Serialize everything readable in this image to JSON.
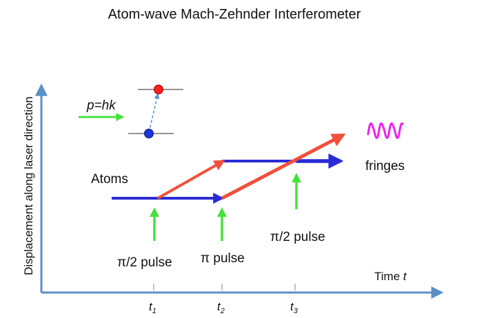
{
  "title": "Atom-wave Mach-Zehnder Interferometer",
  "axes": {
    "y_label": "Displacement along laser direction",
    "x_label_text": "Time ",
    "x_label_var": "t"
  },
  "ticks": [
    {
      "main": "t",
      "sub": "1"
    },
    {
      "main": "t",
      "sub": "2"
    },
    {
      "main": "t",
      "sub": "3"
    }
  ],
  "labels": {
    "atoms": "Atoms",
    "fringes": "fringes",
    "momentum": "p=hk",
    "pulse1": "π/2 pulse",
    "pulse2": "π pulse",
    "pulse3": "π/2 pulse"
  },
  "colors": {
    "axis": "#5b8fc7",
    "unkicked_path": "#2b2bd6",
    "kicked_path": "#f0503c",
    "laser_pulse": "#44e23c",
    "upper_level": "#ff2020",
    "lower_level": "#1f36d6",
    "fringe_wave": "#f020f0"
  },
  "icons": {
    "fringe": "sine-wave-icon",
    "laser": "green-arrow-icon"
  }
}
